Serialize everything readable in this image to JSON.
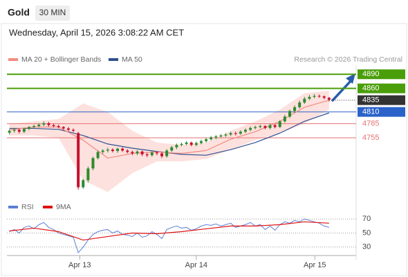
{
  "chart_data": {
    "type": "candlestick",
    "title": "Gold",
    "timeframe": "30 MIN",
    "subtitle": "Wednesday, April 15, 2026 3:08:22 AM CET",
    "source": "Research © 2026 Trading Central",
    "xlim": [
      0,
      71
    ],
    "xticks": [
      {
        "value": 14.8,
        "label": "Apr 13"
      },
      {
        "value": 38.5,
        "label": "Apr 14"
      },
      {
        "value": 62.6,
        "label": "Apr 15"
      }
    ],
    "ylim": [
      4633,
      4908
    ],
    "candles": {
      "up_color": "#2e8b2e",
      "down_color": "#c8102e",
      "open": [
        4766,
        4770,
        4772,
        4768,
        4774,
        4778,
        4780,
        4783,
        4786,
        4782,
        4780,
        4778,
        4775,
        4772,
        4765,
        4650,
        4665,
        4690,
        4712,
        4725,
        4728,
        4730,
        4727,
        4732,
        4728,
        4725,
        4722,
        4726,
        4720,
        4718,
        4724,
        4722,
        4716,
        4728,
        4735,
        4740,
        4742,
        4745,
        4740,
        4744,
        4748,
        4752,
        4756,
        4758,
        4760,
        4762,
        4765,
        4764,
        4768,
        4772,
        4776,
        4778,
        4780,
        4776,
        4782,
        4778,
        4790,
        4800,
        4812,
        4820,
        4830,
        4838,
        4842,
        4844,
        4843,
        4840
      ],
      "high": [
        4773,
        4776,
        4775,
        4777,
        4780,
        4783,
        4786,
        4790,
        4789,
        4785,
        4783,
        4780,
        4778,
        4775,
        4768,
        4668,
        4694,
        4715,
        4728,
        4731,
        4734,
        4733,
        4734,
        4735,
        4731,
        4728,
        4729,
        4728,
        4723,
        4727,
        4727,
        4725,
        4731,
        4738,
        4743,
        4745,
        4748,
        4747,
        4747,
        4751,
        4755,
        4759,
        4761,
        4763,
        4765,
        4768,
        4768,
        4771,
        4775,
        4779,
        4781,
        4783,
        4782,
        4785,
        4785,
        4793,
        4804,
        4815,
        4824,
        4834,
        4842,
        4846,
        4848,
        4847,
        4845,
        4842
      ],
      "low": [
        4762,
        4766,
        4764,
        4765,
        4771,
        4775,
        4777,
        4780,
        4779,
        4777,
        4775,
        4772,
        4769,
        4767,
        4645,
        4647,
        4660,
        4686,
        4709,
        4721,
        4724,
        4724,
        4723,
        4725,
        4722,
        4718,
        4718,
        4716,
        4714,
        4715,
        4718,
        4712,
        4713,
        4725,
        4731,
        4737,
        4739,
        4737,
        4737,
        4741,
        4745,
        4749,
        4752,
        4755,
        4757,
        4759,
        4760,
        4761,
        4765,
        4769,
        4773,
        4775,
        4773,
        4773,
        4775,
        4776,
        4787,
        4797,
        4808,
        4817,
        4827,
        4835,
        4839,
        4840,
        4837,
        4832
      ],
      "close": [
        4770,
        4772,
        4768,
        4774,
        4778,
        4780,
        4783,
        4786,
        4782,
        4780,
        4778,
        4775,
        4772,
        4770,
        4650,
        4665,
        4690,
        4712,
        4725,
        4728,
        4730,
        4727,
        4732,
        4728,
        4725,
        4722,
        4726,
        4720,
        4718,
        4724,
        4722,
        4716,
        4728,
        4735,
        4740,
        4742,
        4745,
        4740,
        4744,
        4748,
        4752,
        4756,
        4758,
        4760,
        4762,
        4765,
        4764,
        4768,
        4772,
        4776,
        4778,
        4780,
        4776,
        4782,
        4778,
        4790,
        4800,
        4812,
        4820,
        4830,
        4838,
        4842,
        4844,
        4843,
        4840,
        4836
      ]
    },
    "overlay_x": [
      0,
      5,
      10,
      15,
      20,
      25,
      30,
      35,
      40,
      45,
      50,
      55,
      60,
      65
    ],
    "series": [
      {
        "name": "MA 20 + Bollinger Bands",
        "color": "#f28b82",
        "band_color": "#fcd9d6",
        "values": [
          4772,
          4778,
          4778,
          4750,
          4712,
          4722,
          4725,
          4722,
          4728,
          4752,
          4768,
          4790,
          4820,
          4835
        ],
        "upper": [
          4785,
          4790,
          4795,
          4828,
          4810,
          4770,
          4745,
          4740,
          4745,
          4770,
          4790,
          4815,
          4850,
          4855
        ],
        "lower": [
          4760,
          4760,
          4755,
          4665,
          4640,
          4680,
          4705,
          4705,
          4710,
          4730,
          4750,
          4765,
          4785,
          4815
        ]
      },
      {
        "name": "MA 50",
        "color": "#2f4f8f",
        "values": [
          4775,
          4775,
          4773,
          4760,
          4742,
          4733,
          4726,
          4720,
          4718,
          4730,
          4745,
          4765,
          4790,
          4808
        ]
      }
    ],
    "levels": [
      4890,
      4860,
      4835,
      4810,
      4785,
      4755
    ],
    "level_colors": [
      "#4a9e0a",
      "#4a9e0a",
      "#333333",
      "#2a62c9",
      "#e27272",
      "#e27272"
    ],
    "level_styles": [
      "solid",
      "solid",
      "dotted",
      "solid",
      "solid",
      "solid"
    ],
    "level_boxed": [
      true,
      true,
      true,
      true,
      false,
      false
    ],
    "rsi": {
      "ylim": [
        15,
        88
      ],
      "yticks": [
        30,
        50,
        70
      ],
      "series": [
        {
          "name": "RSI",
          "color": "#5b7fd6",
          "values": [
            52,
            55,
            50,
            58,
            60,
            56,
            62,
            65,
            58,
            55,
            50,
            48,
            46,
            44,
            22,
            30,
            40,
            48,
            52,
            54,
            55,
            50,
            53,
            48,
            47,
            45,
            50,
            44,
            46,
            52,
            48,
            42,
            55,
            58,
            60,
            57,
            58,
            54,
            56,
            60,
            62,
            61,
            63,
            60,
            62,
            64,
            58,
            60,
            62,
            65,
            60,
            62,
            55,
            60,
            54,
            62,
            66,
            64,
            68,
            66,
            70,
            68,
            66,
            64,
            60,
            58
          ]
        },
        {
          "name": "9MA",
          "color": "#e01010",
          "values": [
            53,
            57,
            52,
            40,
            45,
            50,
            49,
            52,
            56,
            60,
            60,
            62,
            66,
            64
          ]
        }
      ]
    }
  }
}
